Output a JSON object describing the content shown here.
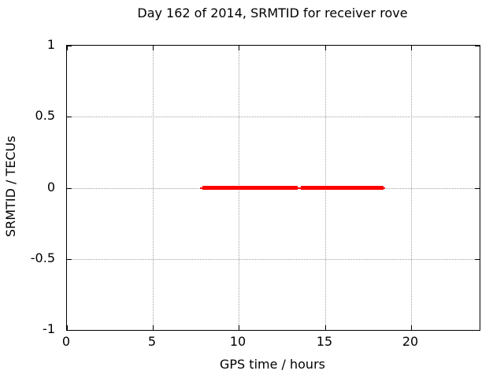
{
  "chart_data": {
    "type": "line",
    "title": "Day 162 of 2014, SRMTID for receiver rove",
    "xlabel": "GPS time / hours",
    "ylabel": "SRMTID / TECUs",
    "xlim": [
      0,
      24
    ],
    "ylim": [
      -1,
      1
    ],
    "xticks": [
      0,
      5,
      10,
      15,
      20
    ],
    "xtick_labels": [
      "0",
      "5",
      "10",
      "15",
      "20"
    ],
    "yticks": [
      1,
      0.5,
      0,
      -0.5,
      -1
    ],
    "ytick_labels": [
      "1",
      "0.5",
      "0",
      "-0.5",
      "-1"
    ],
    "grid": "dotted major gridlines",
    "legend": "none",
    "series": [
      {
        "name": "SRMTID",
        "color": "#ff0000",
        "y_value": 0,
        "thick_segments_hours": [
          [
            7.9,
            13.42
          ],
          [
            13.6,
            18.4
          ]
        ],
        "thin_line_hours": [
          7.75,
          18.5
        ],
        "description": "SRMTID stays at 0 TECUs from about 7.9 h to 18.4 h GPS time with a short data gap near 13.5 h"
      }
    ],
    "colors": {
      "background": "#ffffff",
      "axis": "#000000",
      "grid": "#a0a0a0",
      "text": "#000000"
    }
  }
}
